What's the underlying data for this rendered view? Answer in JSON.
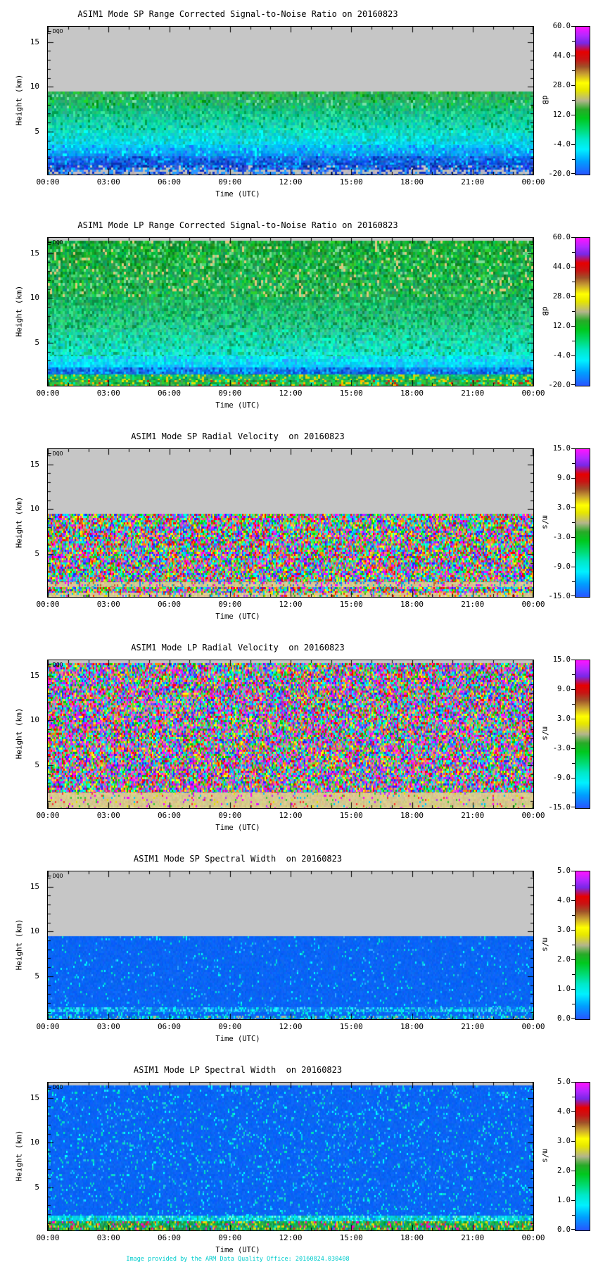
{
  "credit": {
    "text": "Image provided by the ARM Data Quality Office: 20160824.030408",
    "color": "#00CCCC"
  },
  "colormap": {
    "stops": [
      {
        "c": "#2855FF",
        "p": 0
      },
      {
        "c": "#00A0FF",
        "p": 9
      },
      {
        "c": "#00F0FF",
        "p": 17
      },
      {
        "c": "#00E8C8",
        "p": 24
      },
      {
        "c": "#00DC78",
        "p": 30
      },
      {
        "c": "#00C81E",
        "p": 38
      },
      {
        "c": "#28AA28",
        "p": 44
      },
      {
        "c": "#B4B48C",
        "p": 50
      },
      {
        "c": "#E6E600",
        "p": 57
      },
      {
        "c": "#FFFF00",
        "p": 62
      },
      {
        "c": "#C8A032",
        "p": 68
      },
      {
        "c": "#A05028",
        "p": 73
      },
      {
        "c": "#C81414",
        "p": 78
      },
      {
        "c": "#E60000",
        "p": 83
      },
      {
        "c": "#7828E6",
        "p": 89
      },
      {
        "c": "#B428FF",
        "p": 94
      },
      {
        "c": "#FF14FF",
        "p": 100
      }
    ]
  },
  "chart_data": [
    {
      "type": "heatmap",
      "title": "ASIM1 Mode SP Range Corrected Signal-to-Noise Ratio on 20160823",
      "xlabel": "Time (UTC)",
      "ylabel": "Height (km)",
      "annotation": "DQO",
      "x_ticks": [
        "00:00",
        "03:00",
        "06:00",
        "09:00",
        "12:00",
        "15:00",
        "18:00",
        "21:00",
        "00:00"
      ],
      "x_minor_per_major": 3,
      "y_major_ticks": [
        "15",
        "10",
        "5"
      ],
      "y_major_values": [
        15,
        10,
        5
      ],
      "y_range_km": [
        0.2,
        16.7
      ],
      "no_data_above_km": 9.5,
      "colorbar": {
        "unit": "dB",
        "labels": [
          "60.0",
          "44.0",
          "28.0",
          "12.0",
          "-4.0",
          "-20.0"
        ],
        "range": [
          -20,
          60
        ]
      },
      "field_bands": [
        {
          "f": 0,
          "t": 0.436,
          "base": [
            "#C6C6C6"
          ],
          "d": 0,
          "j": 0,
          "cw": 3,
          "ch": 4
        },
        {
          "f": 0.436,
          "t": 0.55,
          "base": [
            "#2FAE54",
            "#16BE7E"
          ],
          "j": 26,
          "speckle": [
            "#009614",
            "#21D42B",
            "#79DFA9"
          ],
          "d": 0.18,
          "cw": 3,
          "ch": 4
        },
        {
          "f": 0.55,
          "t": 0.7,
          "base": [
            "#16BE7E",
            "#0EDCC3"
          ],
          "j": 26,
          "speckle": [
            "#00A050",
            "#37E9A0"
          ],
          "d": 0.15,
          "cw": 3,
          "ch": 4
        },
        {
          "f": 0.7,
          "t": 0.8,
          "base": [
            "#0EDCC3",
            "#00D2F5"
          ],
          "j": 24,
          "speckle": [
            "#00FFFF",
            "#19B998"
          ],
          "d": 0.15,
          "cw": 3,
          "ch": 4
        },
        {
          "f": 0.8,
          "t": 0.875,
          "base": [
            "#00C3F7",
            "#0E8CF0"
          ],
          "j": 26,
          "speckle": [
            "#00FFFF",
            "#1E6EFF"
          ],
          "d": 0.2,
          "cw": 3,
          "ch": 4
        },
        {
          "f": 0.875,
          "t": 0.94,
          "base": [
            "#0E6EE6",
            "#1146D2"
          ],
          "j": 30,
          "speckle": [
            "#00C8FF",
            "#2B7BFF",
            "#0A32B4"
          ],
          "d": 0.3,
          "cw": 3,
          "ch": 3
        },
        {
          "f": 0.94,
          "t": 0.968,
          "base": [
            "#1E55DC"
          ],
          "j": 40,
          "speckle": [
            "#C6C6C6",
            "#00B4FF",
            "#0A2896"
          ],
          "d": 0.4,
          "cw": 3,
          "ch": 3
        },
        {
          "f": 0.968,
          "t": 1.0,
          "base": [
            "#BDBDBD"
          ],
          "j": 14,
          "speckle": [
            "#2350E0",
            "#0A32C8",
            "#3C8CFF",
            "#1EA0FF"
          ],
          "d": 0.5,
          "cw": 3,
          "ch": 3
        }
      ]
    },
    {
      "type": "heatmap",
      "title": "ASIM1 Mode LP Range Corrected Signal-to-Noise Ratio on 20160823",
      "xlabel": "Time (UTC)",
      "ylabel": "Height (km)",
      "annotation": "DQO",
      "x_ticks": [
        "00:00",
        "03:00",
        "06:00",
        "09:00",
        "12:00",
        "15:00",
        "18:00",
        "21:00",
        "00:00"
      ],
      "x_minor_per_major": 3,
      "y_major_ticks": [
        "15",
        "10",
        "5"
      ],
      "y_major_values": [
        15,
        10,
        5
      ],
      "y_range_km": [
        0.2,
        16.7
      ],
      "no_data_above_km": 16.5,
      "colorbar": {
        "unit": "dB",
        "labels": [
          "60.0",
          "44.0",
          "28.0",
          "12.0",
          "-4.0",
          "-20.0"
        ],
        "range": [
          -20,
          60
        ]
      },
      "field_bands": [
        {
          "f": 0,
          "t": 0.018,
          "base": [
            "#C6C6C6"
          ],
          "d": 0,
          "j": 0,
          "cw": 3,
          "ch": 4
        },
        {
          "f": 0.018,
          "t": 0.4,
          "base": [
            "#17A83A",
            "#1FB35C"
          ],
          "j": 34,
          "speckle": [
            "#0A8C14",
            "#2BD22B",
            "#7DDC96",
            "#0E7D28",
            "#49D76E",
            "#E0C87A"
          ],
          "d": 0.3,
          "cw": 3,
          "ch": 4
        },
        {
          "f": 0.4,
          "t": 0.62,
          "base": [
            "#1FB35C",
            "#25CD96"
          ],
          "j": 30,
          "speckle": [
            "#00B450",
            "#32E68C",
            "#0E8C46"
          ],
          "d": 0.25,
          "cw": 3,
          "ch": 4
        },
        {
          "f": 0.62,
          "t": 0.8,
          "base": [
            "#25CD96",
            "#0FE6DC"
          ],
          "j": 28,
          "speckle": [
            "#00FFC8",
            "#19C878",
            "#0AA064"
          ],
          "d": 0.25,
          "cw": 3,
          "ch": 4
        },
        {
          "f": 0.8,
          "t": 0.875,
          "base": [
            "#0FE0E6",
            "#00C8FF"
          ],
          "j": 24,
          "speckle": [
            "#00FFFF",
            "#28A0FF"
          ],
          "d": 0.25,
          "cw": 3,
          "ch": 4
        },
        {
          "f": 0.875,
          "t": 0.925,
          "base": [
            "#0E82F0",
            "#1464E6"
          ],
          "j": 30,
          "speckle": [
            "#00C8FF",
            "#0A46C8"
          ],
          "d": 0.3,
          "cw": 3,
          "ch": 3
        },
        {
          "f": 0.925,
          "t": 0.962,
          "base": [
            "#12B474",
            "#1EB44B"
          ],
          "j": 36,
          "speckle": [
            "#00E67D",
            "#B4DC14",
            "#E6D200"
          ],
          "d": 0.3,
          "cw": 3,
          "ch": 3
        },
        {
          "f": 0.962,
          "t": 1.0,
          "base": [
            "#28AF46"
          ],
          "j": 40,
          "speckle": [
            "#E6E100",
            "#FFB400",
            "#C82814",
            "#00E6B4",
            "#32CD32"
          ],
          "d": 0.35,
          "cw": 3,
          "ch": 3
        }
      ]
    },
    {
      "type": "heatmap",
      "title": "ASIM1 Mode SP Radial Velocity  on 20160823",
      "xlabel": "Time (UTC)",
      "ylabel": "Height (km)",
      "annotation": "DQO",
      "x_ticks": [
        "00:00",
        "03:00",
        "06:00",
        "09:00",
        "12:00",
        "15:00",
        "18:00",
        "21:00",
        "00:00"
      ],
      "x_minor_per_major": 3,
      "y_major_ticks": [
        "15",
        "10",
        "5"
      ],
      "y_major_values": [
        15,
        10,
        5
      ],
      "y_range_km": [
        0.2,
        16.7
      ],
      "no_data_above_km": 9.5,
      "colorbar": {
        "unit": "m/s",
        "labels": [
          "15.0",
          "9.0",
          "3.0",
          "-3.0",
          "-9.0",
          "-15.0"
        ],
        "range": [
          -15,
          15
        ]
      },
      "field_bands": [
        {
          "f": 0,
          "t": 0.436,
          "base": [
            "#C6C6C6"
          ],
          "d": 0,
          "j": 0,
          "cw": 3,
          "ch": 4
        },
        {
          "f": 0.436,
          "t": 0.9,
          "base": [
            "#C8C8C8"
          ],
          "d": 1,
          "j": 0,
          "speckle": [
            "#FF0000",
            "#FF00FF",
            "#2222FF",
            "#00CCFF",
            "#00DD00",
            "#FFFF00",
            "#FF8800",
            "#9933FF",
            "#00FFAA",
            "#FF66AA",
            "#3366FF",
            "#CC4422",
            "#55EE33",
            "#00FFFF",
            "#C8B464"
          ],
          "cw": 2,
          "ch": 3
        },
        {
          "f": 0.9,
          "t": 0.935,
          "base": [
            "#D7C791"
          ],
          "j": 18,
          "speckle": [
            "#00C8C8",
            "#FF00FF",
            "#3264FF",
            "#C86432"
          ],
          "d": 0.25,
          "cw": 2,
          "ch": 3
        },
        {
          "f": 0.935,
          "t": 0.972,
          "base": [
            "#C8C8C8"
          ],
          "d": 1,
          "j": 0,
          "speckle": [
            "#FF0000",
            "#FF00FF",
            "#2222FF",
            "#00CCFF",
            "#00DD00",
            "#FFFF00",
            "#FF8800",
            "#9933FF",
            "#00FFAA",
            "#FF66AA",
            "#3366FF",
            "#CC4422",
            "#55EE33",
            "#00FFFF",
            "#C8B464"
          ],
          "cw": 2,
          "ch": 3
        },
        {
          "f": 0.972,
          "t": 1.0,
          "base": [
            "#D7C791"
          ],
          "j": 20,
          "speckle": [
            "#FF3200",
            "#00C8FF",
            "#B432FF",
            "#E6DC00",
            "#32B414"
          ],
          "d": 0.3,
          "cw": 2,
          "ch": 3
        }
      ]
    },
    {
      "type": "heatmap",
      "title": "ASIM1 Mode LP Radial Velocity  on 20160823",
      "xlabel": "Time (UTC)",
      "ylabel": "Height (km)",
      "annotation": "DQO",
      "x_ticks": [
        "00:00",
        "03:00",
        "06:00",
        "09:00",
        "12:00",
        "15:00",
        "18:00",
        "21:00",
        "00:00"
      ],
      "x_minor_per_major": 3,
      "y_major_ticks": [
        "15",
        "10",
        "5"
      ],
      "y_major_values": [
        15,
        10,
        5
      ],
      "y_range_km": [
        0.2,
        16.7
      ],
      "no_data_above_km": 16.5,
      "colorbar": {
        "unit": "m/s",
        "labels": [
          "15.0",
          "9.0",
          "3.0",
          "-3.0",
          "-9.0",
          "-15.0"
        ],
        "range": [
          -15,
          15
        ]
      },
      "field_bands": [
        {
          "f": 0,
          "t": 0.018,
          "base": [
            "#C6C6C6"
          ],
          "d": 0,
          "j": 0,
          "cw": 3,
          "ch": 4
        },
        {
          "f": 0.018,
          "t": 0.893,
          "base": [
            "#C8C8C8"
          ],
          "d": 1,
          "j": 0,
          "speckle": [
            "#FF00FF",
            "#FF0000",
            "#2222FF",
            "#00CCFF",
            "#00C800",
            "#FFFF00",
            "#FF69B4",
            "#9933FF",
            "#00FFAA",
            "#FF8800",
            "#3366FF",
            "#E14EE1",
            "#55DD33",
            "#00FFFF",
            "#C8B464",
            "#CC2288"
          ],
          "cw": 2,
          "ch": 3
        },
        {
          "f": 0.893,
          "t": 1.0,
          "base": [
            "#D9C88F",
            "#D4C88A"
          ],
          "j": 14,
          "speckle": [
            "#FF00FF",
            "#E6E100",
            "#32CD32",
            "#FF3232",
            "#00C8FF",
            "#B432FF"
          ],
          "d": 0.1,
          "cw": 2,
          "ch": 3
        }
      ]
    },
    {
      "type": "heatmap",
      "title": "ASIM1 Mode SP Spectral Width  on 20160823",
      "xlabel": "Time (UTC)",
      "ylabel": "Height (km)",
      "annotation": "DQO",
      "x_ticks": [
        "00:00",
        "03:00",
        "06:00",
        "09:00",
        "12:00",
        "15:00",
        "18:00",
        "21:00",
        "00:00"
      ],
      "x_minor_per_major": 3,
      "y_major_ticks": [
        "15",
        "10",
        "5"
      ],
      "y_major_values": [
        15,
        10,
        5
      ],
      "y_range_km": [
        0.2,
        16.7
      ],
      "no_data_above_km": 9.5,
      "colorbar": {
        "unit": "m/s",
        "labels": [
          "5.0",
          "4.0",
          "3.0",
          "2.0",
          "1.0",
          "0.0"
        ],
        "range": [
          0,
          5
        ]
      },
      "field_bands": [
        {
          "f": 0,
          "t": 0.436,
          "base": [
            "#C6C6C6"
          ],
          "d": 0,
          "j": 0,
          "cw": 3,
          "ch": 4
        },
        {
          "f": 0.436,
          "t": 0.92,
          "base": [
            "#0A64F5"
          ],
          "j": 10,
          "speckle": [
            "#00C8FF",
            "#00FFFF",
            "#30A0FF",
            "#00E6C8"
          ],
          "d": 0.045,
          "cw": 2,
          "ch": 3
        },
        {
          "f": 0.92,
          "t": 0.95,
          "base": [
            "#0C78F0"
          ],
          "j": 16,
          "speckle": [
            "#00FFFF",
            "#00E6C8",
            "#50DCFF",
            "#19B4FF"
          ],
          "d": 0.42,
          "cw": 2,
          "ch": 3
        },
        {
          "f": 0.95,
          "t": 0.975,
          "base": [
            "#0A64F5"
          ],
          "j": 12,
          "speckle": [
            "#00DCFF",
            "#00FFC8"
          ],
          "d": 0.18,
          "cw": 2,
          "ch": 3
        },
        {
          "f": 0.975,
          "t": 1.0,
          "base": [
            "#0C6EE6"
          ],
          "j": 18,
          "speckle": [
            "#00FFFF",
            "#00DCA0",
            "#28B4FF",
            "#B4B48C"
          ],
          "d": 0.4,
          "cw": 2,
          "ch": 3
        }
      ]
    },
    {
      "type": "heatmap",
      "title": "ASIM1 Mode LP Spectral Width  on 20160823",
      "xlabel": "Time (UTC)",
      "ylabel": "Height (km)",
      "annotation": "DQO",
      "x_ticks": [
        "00:00",
        "03:00",
        "06:00",
        "09:00",
        "12:00",
        "15:00",
        "18:00",
        "21:00",
        "00:00"
      ],
      "x_minor_per_major": 3,
      "y_major_ticks": [
        "15",
        "10",
        "5"
      ],
      "y_major_values": [
        15,
        10,
        5
      ],
      "y_range_km": [
        0.2,
        16.7
      ],
      "no_data_above_km": 16.5,
      "colorbar": {
        "unit": "m/s",
        "labels": [
          "5.0",
          "4.0",
          "3.0",
          "2.0",
          "1.0",
          "0.0"
        ],
        "range": [
          0,
          5
        ]
      },
      "field_bands": [
        {
          "f": 0,
          "t": 0.018,
          "base": [
            "#C6C6C6"
          ],
          "d": 0,
          "j": 0,
          "cw": 3,
          "ch": 4
        },
        {
          "f": 0.018,
          "t": 0.9,
          "base": [
            "#0A64F5"
          ],
          "j": 10,
          "speckle": [
            "#00C8FF",
            "#00FFFF",
            "#28A0FF",
            "#00E6B4",
            "#19D2D2"
          ],
          "d": 0.09,
          "cw": 2,
          "ch": 3
        },
        {
          "f": 0.9,
          "t": 0.94,
          "base": [
            "#00D2DC"
          ],
          "j": 20,
          "speckle": [
            "#00FFFF",
            "#7DFFE6",
            "#0A82FF",
            "#19B47D"
          ],
          "d": 0.45,
          "cw": 2,
          "ch": 3
        },
        {
          "f": 0.94,
          "t": 1.0,
          "base": [
            "#17AA50",
            "#1EA846"
          ],
          "j": 36,
          "speckle": [
            "#E6E100",
            "#FFC814",
            "#00E6C8",
            "#C83C28",
            "#0A82FF",
            "#96D214",
            "#FF00C8"
          ],
          "d": 0.4,
          "cw": 2,
          "ch": 3
        }
      ]
    }
  ]
}
